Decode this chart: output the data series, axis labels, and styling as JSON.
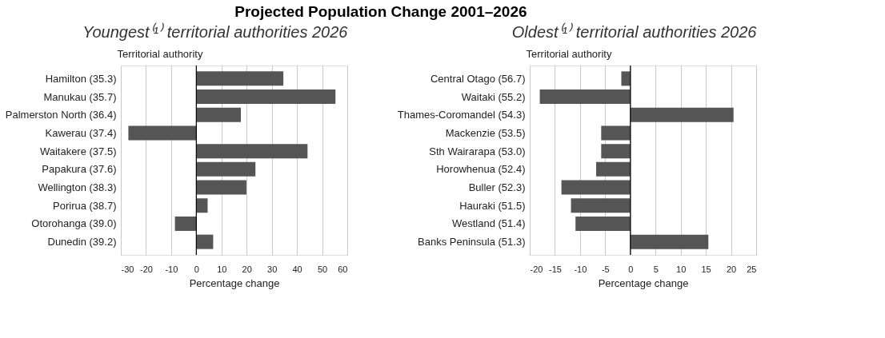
{
  "chart_data": [
    {
      "type": "bar",
      "orientation": "horizontal",
      "title": "Projected Population Change 2001–2026",
      "subtitle": "Youngest⁽¹⁾ territorial authorities 2026",
      "ylabel": "Territorial authority",
      "xlabel": "Percentage change",
      "categories": [
        "Hamilton (35.3)",
        "Manukau (35.7)",
        "Palmerston North (36.4)",
        "Kawerau (37.4)",
        "Waitakere (37.5)",
        "Papakura (37.6)",
        "Wellington (38.3)",
        "Porirua (38.7)",
        "Otorohanga (39.0)",
        "Dunedin (39.2)"
      ],
      "series": [
        {
          "color": "#555555",
          "values": [
            34.6,
            55.3,
            17.7,
            -27.0,
            44.2,
            23.5,
            19.9,
            4.5,
            -8.5,
            6.7
          ]
        }
      ],
      "xlim": [
        -30,
        60
      ],
      "xticks": [
        -30,
        -20,
        -10,
        0,
        10,
        20,
        30,
        40,
        50,
        60
      ],
      "grid": "x",
      "ref_lines": [
        {
          "axis": "x",
          "value": 0,
          "color": "#000000"
        }
      ]
    },
    {
      "type": "bar",
      "orientation": "horizontal",
      "subtitle": "Oldest⁽¹⁾ territorial authorities 2026",
      "ylabel": "Territorial authority",
      "xlabel": "Percentage change",
      "categories": [
        "Central Otago (56.7)",
        "Waitaki (55.2)",
        "Thames-Coromandel (54.3)",
        "Mackenzie (53.5)",
        "Sth Wairarapa (53.0)",
        "Horowhenua (52.4)",
        "Buller (52.3)",
        "Hauraki (51.5)",
        "Westland (51.4)",
        "Banks Peninsula (51.3)"
      ],
      "series": [
        {
          "color": "#555555",
          "values": [
            -1.8,
            -18.0,
            20.5,
            -5.8,
            -5.8,
            -6.8,
            -13.7,
            -11.8,
            -10.9,
            15.5
          ]
        }
      ],
      "xlim": [
        -20,
        25
      ],
      "xticks": [
        -20,
        -15,
        -10,
        -5,
        0,
        5,
        10,
        15,
        20,
        25
      ],
      "grid": "x",
      "ref_lines": [
        {
          "axis": "x",
          "value": 0,
          "color": "#000000"
        }
      ]
    }
  ]
}
